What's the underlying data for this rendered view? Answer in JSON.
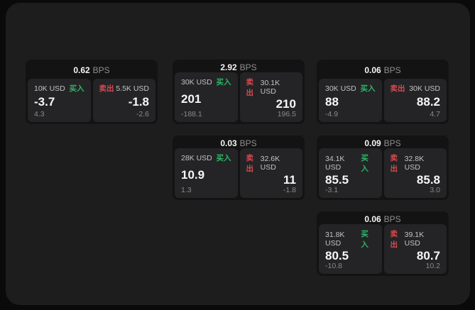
{
  "labels": {
    "buy": "买入",
    "sell": "卖出",
    "bps": "BPS"
  },
  "colors": {
    "buy": "#30b468",
    "sell": "#d9494f",
    "page_background": "#0a0a0b",
    "surface_background": "#1d1d1e",
    "card_background": "#131314",
    "panel_background": "#242426"
  },
  "cards": [
    {
      "bps": "0.62",
      "buy": {
        "amount": "10K USD",
        "price": "-3.7",
        "delta": "4.3"
      },
      "sell": {
        "amount": "5.5K USD",
        "price": "-1.8",
        "delta": "-2.6"
      }
    },
    {
      "bps": "2.92",
      "buy": {
        "amount": "30K USD",
        "price": "201",
        "delta": "-188.1"
      },
      "sell": {
        "amount": "30.1K USD",
        "price": "210",
        "delta": "196.5"
      }
    },
    {
      "bps": "0.06",
      "buy": {
        "amount": "30K USD",
        "price": "88",
        "delta": "-4.9"
      },
      "sell": {
        "amount": "30K USD",
        "price": "88.2",
        "delta": "4.7"
      }
    },
    {
      "bps": "0.03",
      "buy": {
        "amount": "28K USD",
        "price": "10.9",
        "delta": "1.3"
      },
      "sell": {
        "amount": "32.6K USD",
        "price": "11",
        "delta": "-1.8"
      }
    },
    {
      "bps": "0.09",
      "buy": {
        "amount": "34.1K USD",
        "price": "85.5",
        "delta": "-3.1"
      },
      "sell": {
        "amount": "32.8K USD",
        "price": "85.8",
        "delta": "3.0"
      }
    },
    {
      "bps": "0.06",
      "buy": {
        "amount": "31.8K USD",
        "price": "80.5",
        "delta": "-10.8"
      },
      "sell": {
        "amount": "39.1K USD",
        "price": "80.7",
        "delta": "10.2"
      }
    }
  ]
}
